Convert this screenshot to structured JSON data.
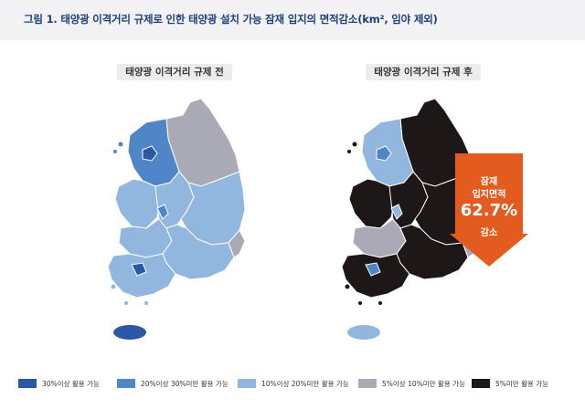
{
  "figure_title": "그림 1. 태양광 이격거리 규제로 인한 태양광 설치 가능 잠재 입지의 면적감소(km², 임야 제외)",
  "map_before": {
    "label": "태양광 이격거리 규제 전"
  },
  "map_after": {
    "label": "태양광 이격거리 규제 후"
  },
  "arrow": {
    "line1": "잠재",
    "line2": "입지면적",
    "percent": "62.7%",
    "line3": "감소",
    "color": "#e35b1f"
  },
  "legend": [
    {
      "label": "30%이상 활용 가능",
      "color": "#2a57a6"
    },
    {
      "label": "20%이상 30%미만 활용 가능",
      "color": "#4e86c8"
    },
    {
      "label": "10%이상 20%미만 활용 가능",
      "color": "#91b7df"
    },
    {
      "label": "5%이상 10%미만 활용 가능",
      "color": "#a9aab6"
    },
    {
      "label": "5%미만 활용 가능",
      "color": "#1d1718"
    }
  ]
}
